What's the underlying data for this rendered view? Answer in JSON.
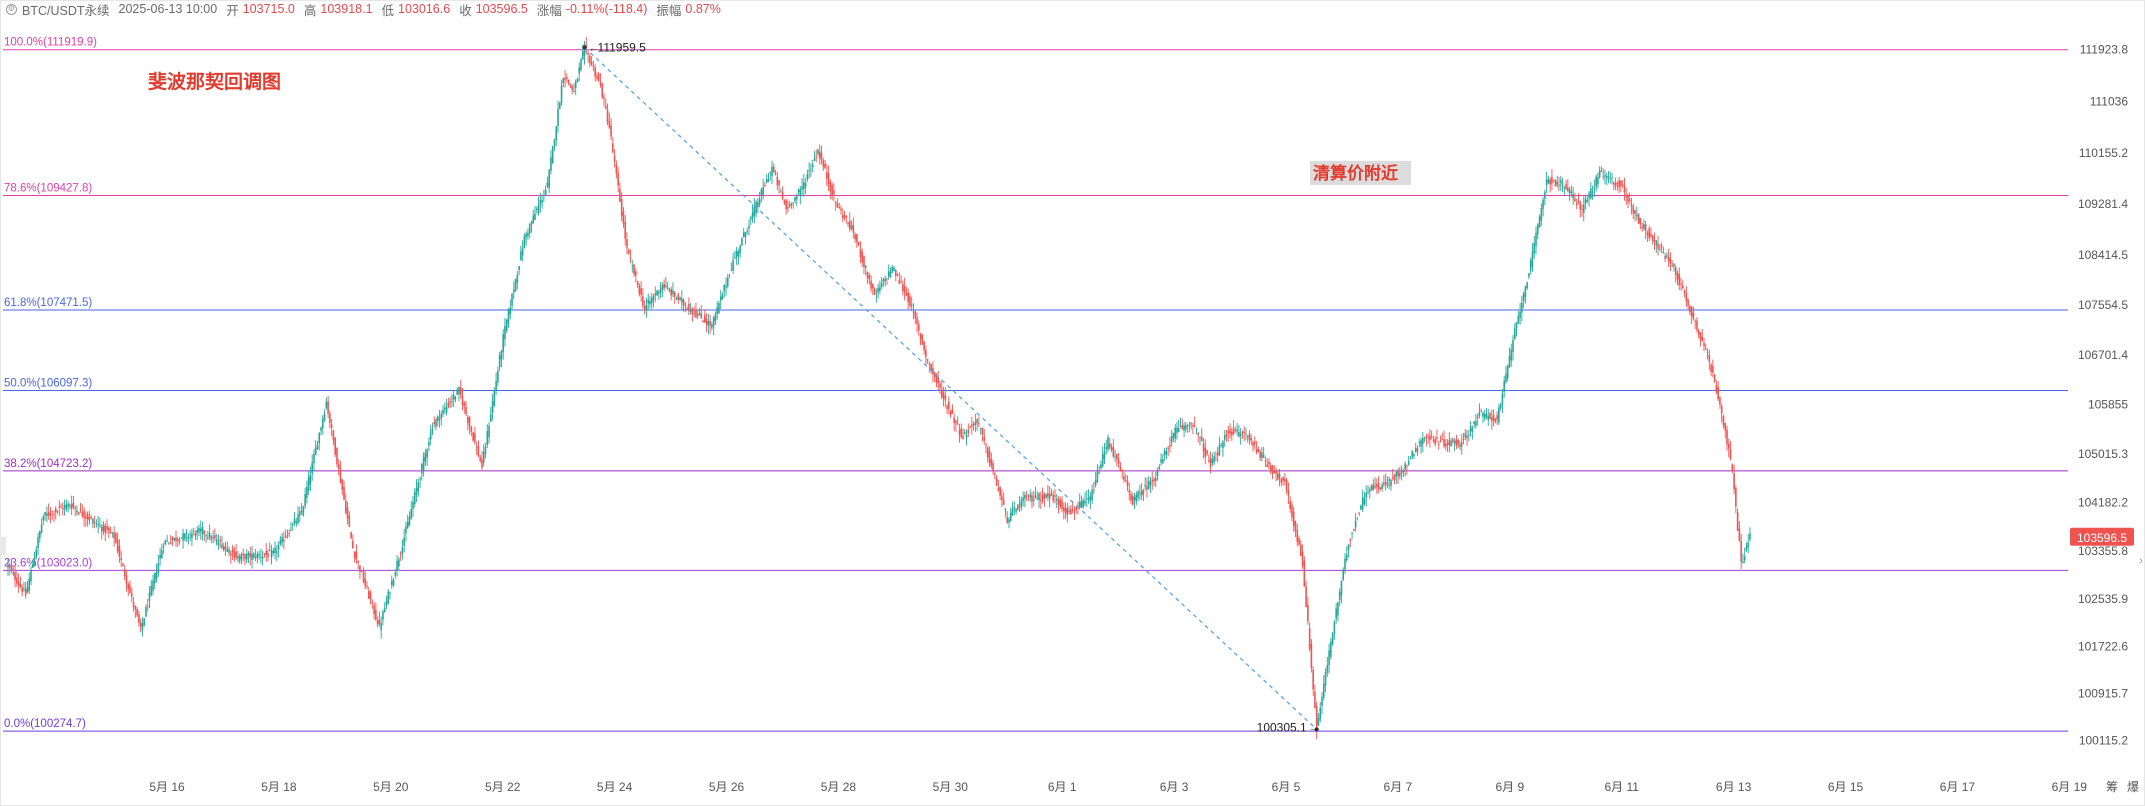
{
  "header": {
    "symbol": "BTC/USDT永续",
    "datetime": "2025-06-13 10:00",
    "open_label": "开",
    "open": "103715.0",
    "high_label": "高",
    "high": "103918.1",
    "low_label": "低",
    "low": "103016.6",
    "close_label": "收",
    "close": "103596.5",
    "change_label": "涨幅",
    "change": "-0.11%(-118.4)",
    "amplitude_label": "振幅",
    "amplitude": "0.87%"
  },
  "annotations": {
    "title": "斐波那契回调图",
    "liquidation": "清算价附近",
    "high_marker": "111959.5",
    "low_marker": "100305.1"
  },
  "current_price": {
    "label": "103596.5",
    "value": 103596.5,
    "color": "#ef5350"
  },
  "bottom_right": {
    "label1": "筹",
    "label2": "爆"
  },
  "colors": {
    "up": "#26a69a",
    "down": "#ef5350",
    "trendline": "#5aa5e6"
  },
  "chart_data": {
    "type": "candlestick",
    "interval": "1h",
    "ylim": [
      99800,
      112400
    ],
    "y_ticks": [
      111923.8,
      111036.0,
      110155.2,
      109281.4,
      108414.5,
      107554.5,
      106701.4,
      105855.0,
      105015.3,
      104182.2,
      103355.8,
      102535.9,
      101722.6,
      100915.7,
      100115.2
    ],
    "x_ticks": [
      "5月 16",
      "5月 18",
      "5月 20",
      "5月 22",
      "5月 24",
      "5月 26",
      "5月 28",
      "5月 30",
      "6月 1",
      "6月 3",
      "6月 5",
      "6月 7",
      "6月 9",
      "6月 11",
      "6月 13",
      "6月 15",
      "6月 17",
      "6月 19"
    ],
    "fib_levels": [
      {
        "label": "100.0%(111919.9)",
        "value": 111919.9,
        "color": "#e040a8"
      },
      {
        "label": "78.6%(109427.8)",
        "value": 109427.8,
        "color": "#e040a8"
      },
      {
        "label": "61.8%(107471.5)",
        "value": 107471.5,
        "color": "#4a66e0"
      },
      {
        "label": "50.0%(106097.3)",
        "value": 106097.3,
        "color": "#4a66e0"
      },
      {
        "label": "38.2%(104723.2)",
        "value": 104723.2,
        "color": "#9a2ec2"
      },
      {
        "label": "23.6%(103023.0)",
        "value": 103023.0,
        "color": "#a63ee0"
      },
      {
        "label": "0.0%(100274.7)",
        "value": 100274.7,
        "color": "#6a3ee0"
      }
    ],
    "trendline": {
      "from_date": "5月 23",
      "from_value": 111959.5,
      "to_date": "6月 6",
      "to_value": 100305.1
    },
    "price_path": [
      [
        0,
        103100
      ],
      [
        10,
        102600
      ],
      [
        20,
        103950
      ],
      [
        35,
        104150
      ],
      [
        60,
        103600
      ],
      [
        75,
        102000
      ],
      [
        88,
        103500
      ],
      [
        110,
        103700
      ],
      [
        130,
        103250
      ],
      [
        150,
        103300
      ],
      [
        166,
        104020
      ],
      [
        180,
        105900
      ],
      [
        195,
        103400
      ],
      [
        210,
        102050
      ],
      [
        225,
        103700
      ],
      [
        240,
        105500
      ],
      [
        255,
        106100
      ],
      [
        268,
        104800
      ],
      [
        280,
        107000
      ],
      [
        292,
        108700
      ],
      [
        305,
        109600
      ],
      [
        314,
        111500
      ],
      [
        320,
        111200
      ],
      [
        326,
        111959.5
      ],
      [
        335,
        111300
      ],
      [
        340,
        110600
      ],
      [
        350,
        108500
      ],
      [
        360,
        107500
      ],
      [
        370,
        107900
      ],
      [
        385,
        107500
      ],
      [
        398,
        107200
      ],
      [
        410,
        108300
      ],
      [
        425,
        109400
      ],
      [
        432,
        109900
      ],
      [
        440,
        109200
      ],
      [
        448,
        109500
      ],
      [
        458,
        110200
      ],
      [
        468,
        109300
      ],
      [
        478,
        108800
      ],
      [
        490,
        107700
      ],
      [
        500,
        108200
      ],
      [
        510,
        107600
      ],
      [
        520,
        106600
      ],
      [
        530,
        105900
      ],
      [
        540,
        105300
      ],
      [
        548,
        105600
      ],
      [
        555,
        104900
      ],
      [
        565,
        103900
      ],
      [
        575,
        104250
      ],
      [
        590,
        104300
      ],
      [
        600,
        104000
      ],
      [
        612,
        104250
      ],
      [
        622,
        105250
      ],
      [
        636,
        104200
      ],
      [
        648,
        104600
      ],
      [
        660,
        105400
      ],
      [
        670,
        105550
      ],
      [
        680,
        104800
      ],
      [
        690,
        105400
      ],
      [
        700,
        105350
      ],
      [
        712,
        104850
      ],
      [
        722,
        104500
      ],
      [
        732,
        103150
      ],
      [
        740,
        100305.1
      ],
      [
        748,
        101800
      ],
      [
        758,
        103500
      ],
      [
        768,
        104400
      ],
      [
        780,
        104500
      ],
      [
        790,
        104800
      ],
      [
        800,
        105300
      ],
      [
        812,
        105200
      ],
      [
        822,
        105200
      ],
      [
        832,
        105700
      ],
      [
        842,
        105600
      ],
      [
        852,
        107100
      ],
      [
        862,
        108400
      ],
      [
        870,
        109700
      ],
      [
        880,
        109600
      ],
      [
        890,
        109200
      ],
      [
        900,
        109800
      ],
      [
        912,
        109600
      ],
      [
        922,
        109000
      ],
      [
        932,
        108600
      ],
      [
        942,
        108200
      ],
      [
        952,
        107400
      ],
      [
        960,
        106800
      ],
      [
        968,
        105900
      ],
      [
        975,
        104700
      ],
      [
        980,
        103150
      ],
      [
        985,
        103596.5
      ]
    ]
  }
}
